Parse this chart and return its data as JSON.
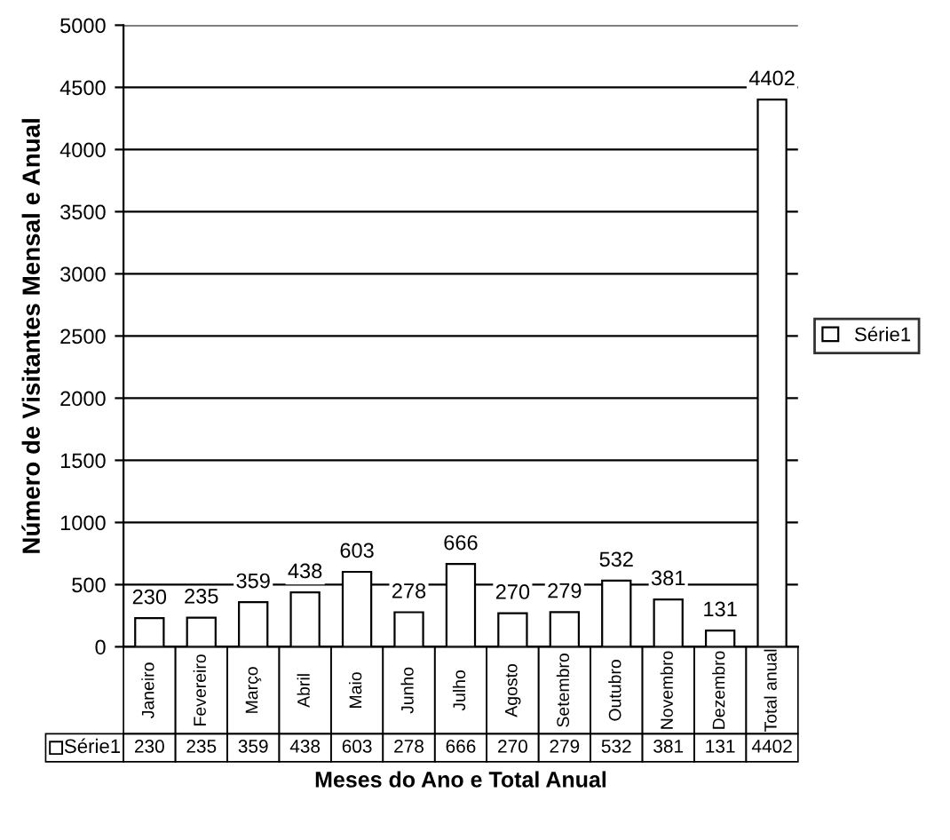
{
  "chart_data": {
    "type": "bar",
    "xlabel": "Meses do Ano e Total Anual",
    "ylabel": "Número de Visitantes Mensal e Anual",
    "categories": [
      "Janeiro",
      "Fevereiro",
      "Março",
      "Abril",
      "Maio",
      "Junho",
      "Julho",
      "Agosto",
      "Setembro",
      "Outubro",
      "Novembro",
      "Dezembro",
      "Total anual"
    ],
    "series": [
      {
        "name": "Série1",
        "color": "#ffffff",
        "values": [
          230,
          235,
          359,
          438,
          603,
          278,
          666,
          270,
          279,
          532,
          381,
          131,
          4402
        ]
      }
    ],
    "ylim": [
      0,
      5000
    ],
    "yticks": [
      0,
      500,
      1000,
      1500,
      2000,
      2500,
      3000,
      3500,
      4000,
      4500,
      5000
    ],
    "value_labels": [
      "230",
      "235",
      "359",
      "438",
      "603",
      "278",
      "666",
      "270",
      "279",
      "532",
      "381",
      "131",
      "4402"
    ],
    "grid": "y",
    "data_labels": true,
    "legend": "right"
  }
}
